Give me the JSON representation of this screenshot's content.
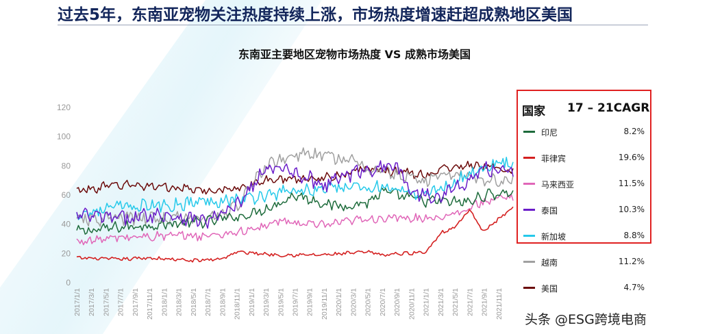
{
  "headline": "过去5年，东南亚宠物关注热度持续上涨，市场热度增速赶超成熟地区美国",
  "watermark": "头条 @ESG跨境电商",
  "chart_data": {
    "type": "line",
    "title": "东南亚主要地区宠物市场热度 VS 成熟市场美国",
    "xlabel": "",
    "ylabel": "",
    "ylim": [
      0,
      120
    ],
    "yticks": [
      0,
      20,
      40,
      60,
      80,
      100,
      120
    ],
    "grid": false,
    "legend_position": "right",
    "legend_header": {
      "country": "国家",
      "cagr": "17 – 21CAGR"
    },
    "x_tick_labels": [
      "2017/1/1",
      "2017/3/1",
      "2017/5/1",
      "2017/7/1",
      "2017/9/1",
      "2017/11/1",
      "2018/1/1",
      "2018/3/1",
      "2018/5/1",
      "2018/7/1",
      "2018/9/1",
      "2018/11/1",
      "2019/1/1",
      "2019/3/1",
      "2019/5/1",
      "2019/7/1",
      "2019/9/1",
      "2019/11/1",
      "2020/1/1",
      "2020/3/1",
      "2020/5/1",
      "2020/7/1",
      "2020/9/1",
      "2020/11/1",
      "2021/1/1",
      "2021/3/1",
      "2021/5/1",
      "2021/7/1",
      "2021/9/1",
      "2021/11/1"
    ],
    "x_months": [
      0,
      60
    ],
    "series": [
      {
        "name": "印尼",
        "cagr": "8.2%",
        "color": "#1d6b3b",
        "boxed": true,
        "keypoints": [
          [
            0,
            35
          ],
          [
            6,
            38
          ],
          [
            12,
            40
          ],
          [
            18,
            42
          ],
          [
            24,
            47
          ],
          [
            28,
            55
          ],
          [
            30,
            60
          ],
          [
            36,
            52
          ],
          [
            40,
            55
          ],
          [
            42,
            62
          ],
          [
            48,
            56
          ],
          [
            54,
            55
          ],
          [
            56,
            60
          ],
          [
            60,
            62
          ]
        ]
      },
      {
        "name": "菲律宾",
        "cagr": "19.6%",
        "color": "#d42020",
        "boxed": true,
        "keypoints": [
          [
            0,
            17
          ],
          [
            6,
            16
          ],
          [
            10,
            17
          ],
          [
            16,
            15
          ],
          [
            20,
            16.5
          ],
          [
            22,
            21
          ],
          [
            28,
            19
          ],
          [
            34,
            19
          ],
          [
            40,
            21
          ],
          [
            42,
            19
          ],
          [
            48,
            21
          ],
          [
            50,
            34
          ],
          [
            52,
            38
          ],
          [
            54,
            50
          ],
          [
            56,
            35
          ],
          [
            60,
            52
          ]
        ]
      },
      {
        "name": "马来西亚",
        "cagr": "11.5%",
        "color": "#e066b8",
        "boxed": true,
        "keypoints": [
          [
            0,
            28
          ],
          [
            6,
            31
          ],
          [
            12,
            32
          ],
          [
            18,
            32
          ],
          [
            24,
            36
          ],
          [
            28,
            42
          ],
          [
            34,
            39
          ],
          [
            40,
            44
          ],
          [
            46,
            44
          ],
          [
            50,
            45
          ],
          [
            54,
            51
          ],
          [
            56,
            56
          ],
          [
            60,
            58
          ]
        ]
      },
      {
        "name": "泰国",
        "cagr": "10.3%",
        "color": "#6a1cc9",
        "boxed": true,
        "keypoints": [
          [
            0,
            46
          ],
          [
            6,
            44
          ],
          [
            12,
            47
          ],
          [
            18,
            42
          ],
          [
            22,
            52
          ],
          [
            24,
            65
          ],
          [
            26,
            78
          ],
          [
            30,
            76
          ],
          [
            34,
            67
          ],
          [
            36,
            72
          ],
          [
            40,
            78
          ],
          [
            44,
            80
          ],
          [
            46,
            62
          ],
          [
            50,
            60
          ],
          [
            54,
            70
          ],
          [
            56,
            78
          ],
          [
            60,
            78
          ]
        ]
      },
      {
        "name": "新加坡",
        "cagr": "8.8%",
        "color": "#25c9ea",
        "boxed": true,
        "keypoints": [
          [
            0,
            47
          ],
          [
            6,
            52
          ],
          [
            12,
            53
          ],
          [
            18,
            56
          ],
          [
            24,
            58
          ],
          [
            28,
            62
          ],
          [
            34,
            64
          ],
          [
            40,
            66
          ],
          [
            42,
            65
          ],
          [
            46,
            60
          ],
          [
            50,
            64
          ],
          [
            54,
            75
          ],
          [
            58,
            82
          ],
          [
            60,
            80
          ]
        ]
      },
      {
        "name": "越南",
        "cagr": "11.2%",
        "color": "#a0a0a0",
        "boxed": false,
        "keypoints": [
          [
            0,
            43
          ],
          [
            6,
            44
          ],
          [
            12,
            44
          ],
          [
            18,
            44
          ],
          [
            22,
            52
          ],
          [
            26,
            80
          ],
          [
            30,
            88
          ],
          [
            36,
            86
          ],
          [
            40,
            78
          ],
          [
            44,
            74
          ],
          [
            48,
            70
          ],
          [
            52,
            76
          ],
          [
            56,
            70
          ],
          [
            60,
            70
          ]
        ]
      },
      {
        "name": "美国",
        "cagr": "4.7%",
        "color": "#6b0a0a",
        "boxed": false,
        "keypoints": [
          [
            0,
            63
          ],
          [
            6,
            67
          ],
          [
            12,
            66
          ],
          [
            18,
            62
          ],
          [
            22,
            65
          ],
          [
            26,
            70
          ],
          [
            30,
            71
          ],
          [
            34,
            72
          ],
          [
            38,
            76
          ],
          [
            40,
            78
          ],
          [
            44,
            76
          ],
          [
            48,
            74
          ],
          [
            52,
            80
          ],
          [
            56,
            80
          ],
          [
            60,
            76
          ]
        ]
      }
    ]
  }
}
